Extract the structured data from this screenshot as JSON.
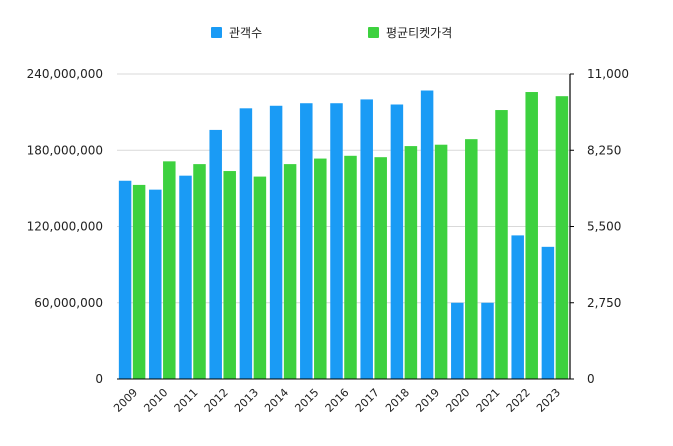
{
  "chart_data": {
    "type": "bar",
    "categories": [
      "2009",
      "2010",
      "2011",
      "2012",
      "2013",
      "2014",
      "2015",
      "2016",
      "2017",
      "2018",
      "2019",
      "2020",
      "2021",
      "2022",
      "2023"
    ],
    "series": [
      {
        "name": "관객수",
        "axis": "left",
        "color": "#1A9BF5",
        "values": [
          156000000,
          149000000,
          160000000,
          196000000,
          213000000,
          215000000,
          217000000,
          217000000,
          220000000,
          216000000,
          227000000,
          60000000,
          60000000,
          113000000,
          104000000
        ]
      },
      {
        "name": "평균티켓가격",
        "axis": "right",
        "color": "#3DD13F",
        "values": [
          7000,
          7850,
          7750,
          7500,
          7300,
          7750,
          7950,
          8050,
          8000,
          8400,
          8450,
          8650,
          9700,
          10350,
          10200
        ]
      }
    ],
    "y_left": {
      "min": 0,
      "max": 240000000,
      "ticks": [
        0,
        60000000,
        120000000,
        180000000,
        240000000
      ],
      "tick_labels": [
        "0",
        "60,000,000",
        "120,000,000",
        "180,000,000",
        "240,000,000"
      ]
    },
    "y_right": {
      "min": 0,
      "max": 11000,
      "ticks": [
        0,
        2750,
        5500,
        8250,
        11000
      ],
      "tick_labels": [
        "0",
        "2,750",
        "5,500",
        "8,250",
        "11,000"
      ]
    },
    "grid": true,
    "legend_position": "top-center"
  }
}
